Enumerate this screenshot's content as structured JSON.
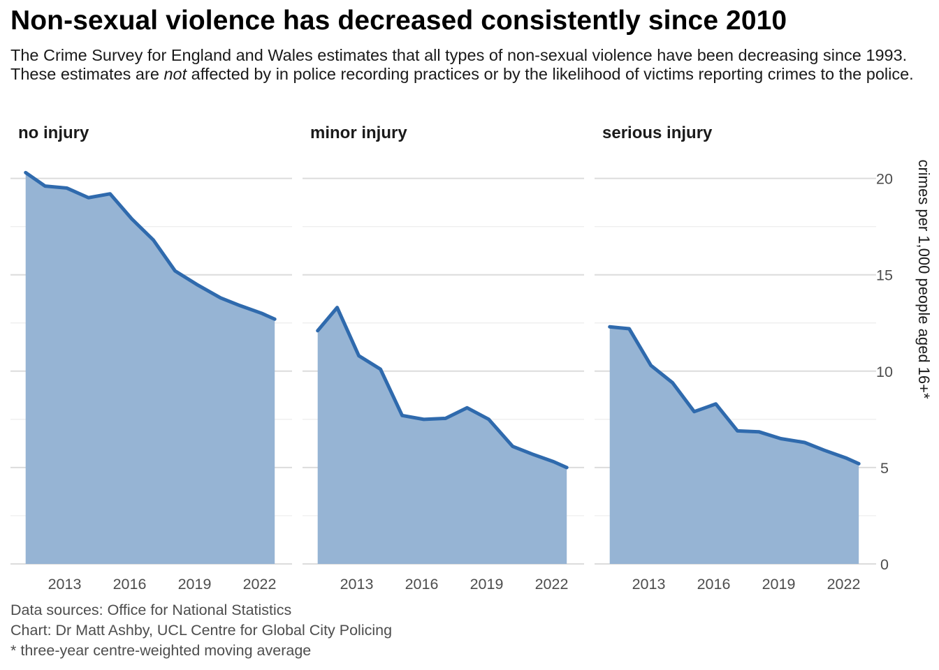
{
  "title": "Non-sexual violence has decreased consistently since 2010",
  "subtitle": {
    "part1": "The Crime Survey for England and Wales estimates that all types of non-sexual violence have been decreasing since 1993. These estimates are ",
    "emphasis": "not",
    "part2": " affected by in police recording practices or by the likelihood of victims reporting crimes to the police."
  },
  "captions": {
    "sources": "Data sources: Office for National Statistics",
    "credit": "Chart: Dr Matt Ashby, UCL Centre for Global City Policing",
    "note": "* three-year centre-weighted moving average"
  },
  "colors": {
    "line": "#2f6aad",
    "fill": "#96b4d4",
    "grid_major": "#dcdcdc",
    "grid_minor": "#ececec",
    "tick_text": "#4d4d4d"
  },
  "chart_data": {
    "type": "area",
    "ylabel": "crimes per 1,000 people aged 16+*",
    "ylim": [
      0,
      21
    ],
    "yticks": [
      0,
      5,
      10,
      15,
      20
    ],
    "xlim": [
      2010.5,
      2023.5
    ],
    "xticks": [
      2013,
      2016,
      2019,
      2022
    ],
    "x_tick_labels": [
      "2013",
      "2016",
      "2019",
      "2022"
    ],
    "x": [
      2011.2,
      2012.1,
      2013.1,
      2014.1,
      2015.1,
      2016.1,
      2017.1,
      2018.1,
      2019.1,
      2020.2,
      2021.1,
      2022.1,
      2022.7
    ],
    "facets": [
      {
        "name": "no injury",
        "values": [
          20.3,
          19.6,
          19.5,
          19.0,
          19.2,
          17.9,
          16.8,
          15.2,
          14.5,
          13.8,
          13.4,
          13.0,
          12.7
        ]
      },
      {
        "name": "minor injury",
        "values": [
          12.1,
          13.3,
          10.8,
          10.1,
          7.7,
          7.5,
          7.55,
          8.1,
          7.5,
          6.1,
          5.7,
          5.3,
          5.0
        ]
      },
      {
        "name": "serious injury",
        "values": [
          12.3,
          12.2,
          10.3,
          9.4,
          7.9,
          8.3,
          6.9,
          6.85,
          6.5,
          6.3,
          5.9,
          5.5,
          5.2
        ]
      }
    ],
    "grid": true,
    "legend": "none"
  }
}
